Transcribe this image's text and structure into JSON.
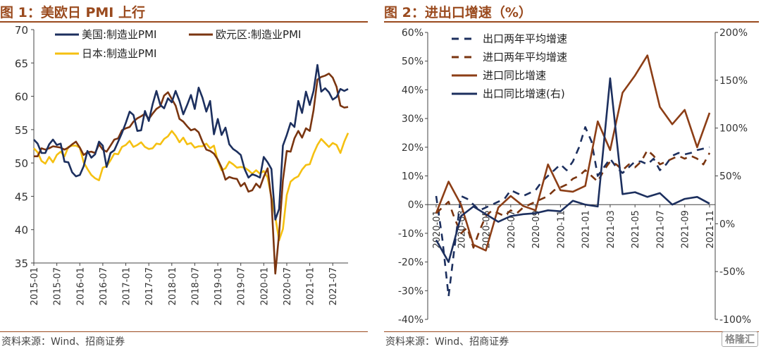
{
  "left": {
    "title": "图 1：美欧日 PMI 上行",
    "source": "资料来源：Wind、招商证券"
  },
  "right": {
    "title": "图 2：进出口增速（%）",
    "source": "资料来源：Wind、招商证券"
  },
  "watermark": "格隆汇",
  "chart_data": [
    {
      "type": "line",
      "ylim": [
        35,
        70
      ],
      "yticks": [
        35,
        40,
        45,
        50,
        55,
        60,
        65,
        70
      ],
      "xticks": [
        "2015-01",
        "2015-07",
        "2016-01",
        "2016-07",
        "2017-01",
        "2017-07",
        "2018-01",
        "2018-07",
        "2019-01",
        "2019-07",
        "2020-01",
        "2020-07",
        "2021-01",
        "2021-07"
      ],
      "legend_placement": "top",
      "series": [
        {
          "name": "美国:制造业PMI",
          "color": "#1c2f5e",
          "values": [
            53.5,
            52.9,
            51.5,
            51.5,
            52.8,
            53.5,
            52.7,
            52.9,
            50.2,
            50.1,
            48.6,
            48.0,
            48.2,
            49.5,
            51.8,
            50.8,
            51.3,
            53.2,
            52.6,
            49.4,
            51.5,
            51.9,
            53.2,
            54.5,
            56.0,
            57.7,
            57.2,
            54.8,
            54.9,
            57.8,
            56.3,
            58.8,
            60.8,
            58.7,
            58.2,
            59.7,
            59.1,
            60.8,
            59.3,
            57.3,
            58.7,
            60.2,
            58.1,
            61.3,
            59.8,
            57.7,
            59.3,
            54.3,
            56.6,
            54.2,
            55.3,
            52.8,
            52.1,
            51.7,
            51.2,
            49.1,
            47.8,
            48.3,
            48.1,
            47.8,
            50.9,
            50.1,
            49.1,
            41.5,
            43.1,
            52.6,
            54.2,
            56.0,
            55.4,
            59.3,
            57.5,
            60.7,
            58.7,
            60.8,
            64.7,
            60.7,
            61.2,
            60.6,
            59.5,
            59.9,
            61.1,
            60.8,
            61.1
          ]
        },
        {
          "name": "欧元区:制造业PMI",
          "color": "#7a3510",
          "values": [
            51.0,
            51.0,
            52.2,
            52.0,
            52.2,
            52.5,
            52.4,
            52.3,
            52.0,
            52.3,
            52.8,
            53.2,
            52.3,
            51.2,
            51.6,
            51.7,
            51.5,
            52.8,
            52.0,
            51.7,
            52.6,
            53.5,
            53.7,
            54.9,
            55.2,
            55.4,
            56.2,
            56.7,
            57.0,
            57.4,
            56.6,
            57.4,
            58.1,
            58.5,
            60.1,
            60.6,
            59.6,
            58.6,
            56.6,
            56.2,
            55.5,
            54.9,
            55.1,
            54.6,
            53.2,
            52.0,
            51.8,
            51.4,
            50.5,
            49.3,
            47.5,
            47.9,
            47.7,
            47.6,
            46.5,
            47.0,
            45.7,
            45.9,
            46.9,
            46.3,
            47.9,
            49.2,
            44.5,
            33.4,
            39.4,
            47.4,
            51.8,
            51.7,
            53.7,
            54.8,
            53.8,
            55.2,
            54.8,
            57.9,
            62.5,
            62.9,
            63.1,
            63.4,
            62.8,
            61.4,
            58.6,
            58.3,
            58.4
          ]
        },
        {
          "name": "日本:制造业PMI",
          "color": "#f5c011",
          "values": [
            52.2,
            51.6,
            50.3,
            49.9,
            50.9,
            50.1,
            51.2,
            51.7,
            51.0,
            52.4,
            52.6,
            52.6,
            52.3,
            50.1,
            49.1,
            48.2,
            47.7,
            47.4,
            49.3,
            49.5,
            50.4,
            51.4,
            51.3,
            52.4,
            52.7,
            53.3,
            52.4,
            52.7,
            53.1,
            52.4,
            52.1,
            52.2,
            52.9,
            52.8,
            53.6,
            54.0,
            54.8,
            54.1,
            53.1,
            53.8,
            52.8,
            53.0,
            52.3,
            52.5,
            52.5,
            52.9,
            52.2,
            52.6,
            50.3,
            48.9,
            49.2,
            50.2,
            49.8,
            49.3,
            49.4,
            49.3,
            48.9,
            48.4,
            48.9,
            48.4,
            48.8,
            47.8,
            44.8,
            41.9,
            38.4,
            40.1,
            45.2,
            47.2,
            47.7,
            48.0,
            49.0,
            49.7,
            49.8,
            51.4,
            52.7,
            53.6,
            53.0,
            52.4,
            53.0,
            52.7,
            51.5,
            53.2,
            54.5
          ]
        }
      ]
    },
    {
      "type": "line",
      "ylim": [
        -40,
        60
      ],
      "yticks": [
        "-40%",
        "-30%",
        "-20%",
        "-10%",
        "0%",
        "10%",
        "20%",
        "30%",
        "40%",
        "50%",
        "60%"
      ],
      "y2lim": [
        -100,
        200
      ],
      "y2ticks": [
        "-100%",
        "-50%",
        "0%",
        "50%",
        "100%",
        "150%",
        "200%"
      ],
      "xticks": [
        "2020-01",
        "2020-03",
        "2020-05",
        "2020-07",
        "2020-09",
        "2020-11",
        "2021-01",
        "2021-03",
        "2021-05",
        "2021-07",
        "2021-09",
        "2021-11"
      ],
      "legend_placement": "top-left",
      "series": [
        {
          "name": "出口两年平均增速",
          "color": "#1c2f5e",
          "dash": true,
          "axis": "left",
          "x": [
            0,
            0.5,
            1,
            1.5,
            2,
            2.5,
            3,
            3.5,
            4,
            4.5,
            5,
            5.5,
            6,
            6.5,
            7,
            7.5,
            8,
            8.5,
            9,
            9.5,
            10,
            10.5,
            11,
            11.5,
            12,
            12.5,
            13,
            13.5,
            14,
            14.5,
            15,
            15.5,
            16,
            16.5,
            17,
            17.5,
            18,
            18.5,
            19,
            19.5,
            20,
            20.5,
            21,
            21.5,
            22
          ],
          "values": [
            3,
            -12,
            -32,
            -14,
            3,
            2,
            0,
            -2,
            -1,
            0,
            1,
            2,
            5,
            4,
            3,
            4,
            5,
            8,
            10,
            12,
            14,
            12,
            15,
            20,
            27,
            22,
            10,
            13,
            16,
            13,
            11,
            13,
            15,
            15,
            14,
            16,
            12,
            14,
            17,
            18,
            17.5,
            18,
            19,
            19.5,
            20
          ]
        },
        {
          "name": "进口两年平均增速",
          "color": "#7a3510",
          "dash": true,
          "axis": "left",
          "x": [
            0,
            0.5,
            1,
            1.5,
            2,
            2.5,
            3,
            3.5,
            4,
            4.5,
            5,
            5.5,
            6,
            6.5,
            7,
            7.5,
            8,
            8.5,
            9,
            9.5,
            10,
            10.5,
            11,
            11.5,
            12,
            12.5,
            13,
            13.5,
            14,
            14.5,
            15,
            15.5,
            16,
            16.5,
            17,
            17.5,
            18,
            18.5,
            19,
            19.5,
            20,
            20.5,
            21,
            21.5,
            22
          ],
          "values": [
            -3,
            -1,
            1,
            -5,
            -10,
            -8,
            -15,
            -9,
            -4,
            -2,
            -3,
            -4,
            -2,
            -3,
            -1,
            0,
            1,
            2,
            3,
            5,
            6,
            7,
            9,
            10,
            12,
            10,
            8,
            12,
            15,
            14,
            12,
            14,
            13,
            15,
            19,
            17,
            14,
            15,
            16,
            17,
            16,
            17,
            16,
            14,
            18
          ]
        },
        {
          "name": "进口同比增速",
          "color": "#8c3e16",
          "dash": false,
          "axis": "left",
          "x": [
            0,
            1,
            2,
            3,
            4,
            5,
            6,
            7,
            8,
            9,
            10,
            11,
            12,
            13,
            14,
            15,
            16,
            17,
            18,
            19,
            20,
            21,
            22
          ],
          "values": [
            -3,
            8,
            0,
            -14,
            -16,
            -1,
            3,
            -0.5,
            -2,
            14,
            5,
            4.5,
            6.5,
            29,
            19,
            39,
            45,
            52,
            34,
            28,
            33,
            20,
            32
          ]
        },
        {
          "name": "出口同比增速(右)",
          "color": "#1c2f5e",
          "dash": false,
          "axis": "right",
          "x": [
            0,
            1,
            2,
            3,
            4,
            5,
            6,
            7,
            8,
            9,
            10,
            11,
            12,
            13,
            14,
            15,
            16,
            17,
            18,
            19,
            20,
            21,
            22
          ],
          "values": [
            -17,
            -40,
            8,
            18,
            10,
            2,
            8,
            10,
            11,
            14,
            13,
            24,
            20,
            18,
            152,
            31,
            33,
            28,
            32,
            20,
            26,
            28,
            21
          ]
        }
      ]
    }
  ]
}
